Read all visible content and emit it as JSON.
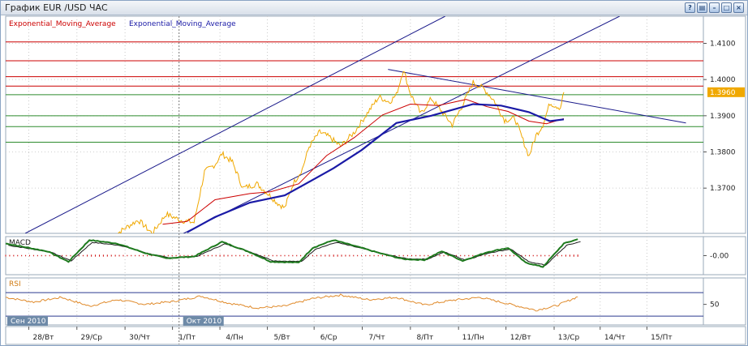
{
  "window": {
    "title": "График EUR /USD  ЧАС",
    "buttons": [
      {
        "name": "help-button",
        "glyph": "?"
      },
      {
        "name": "print-button",
        "glyph": "▤"
      },
      {
        "name": "minimize-button",
        "glyph": "–"
      },
      {
        "name": "maximize-button",
        "glyph": "□"
      },
      {
        "name": "close-button",
        "glyph": "×"
      }
    ]
  },
  "chart_data": [
    {
      "type": "line",
      "panel": "price",
      "legend": [
        {
          "name": "Exponential_Moving_Average",
          "color": "#cc0000"
        },
        {
          "name": "Exponential_Moving_Average",
          "color": "#1a1aa6"
        }
      ],
      "current_price_label": "1.3960",
      "colors": {
        "price": "#f0a800",
        "ema_fast": "#cc0000",
        "ema_slow": "#1a1aa6",
        "trend": "#1a1a8a",
        "resistance": "#cc0000",
        "support": "#2e8b2e",
        "grid": "#999999"
      },
      "ylim": [
        1.3575,
        1.4175
      ],
      "y_ticks": [
        {
          "v": 1.37,
          "label": "1.3700"
        },
        {
          "v": 1.38,
          "label": "1.3800"
        },
        {
          "v": 1.39,
          "label": "1.3900"
        },
        {
          "v": 1.4,
          "label": "1.4000"
        },
        {
          "v": 1.41,
          "label": "1.4100"
        }
      ],
      "resistance_levels": [
        1.4104,
        1.4052,
        1.4008,
        1.3982
      ],
      "support_levels": [
        1.3958,
        1.39,
        1.387,
        1.3827
      ],
      "trend_lines": [
        {
          "from": [
            0.028,
            1.3575
          ],
          "to": [
            0.63,
            1.4175
          ]
        },
        {
          "from": [
            0.255,
            1.3575
          ],
          "to": [
            0.88,
            1.4175
          ]
        },
        {
          "from": [
            0.548,
            1.4028
          ],
          "to": [
            0.975,
            1.388
          ]
        }
      ],
      "price_series": [
        [
          0.155,
          1.3568
        ],
        [
          0.17,
          1.3588
        ],
        [
          0.19,
          1.3612
        ],
        [
          0.21,
          1.3575
        ],
        [
          0.23,
          1.3628
        ],
        [
          0.25,
          1.3612
        ],
        [
          0.27,
          1.3605
        ],
        [
          0.285,
          1.3745
        ],
        [
          0.3,
          1.3765
        ],
        [
          0.31,
          1.3795
        ],
        [
          0.325,
          1.3772
        ],
        [
          0.34,
          1.37
        ],
        [
          0.36,
          1.3712
        ],
        [
          0.375,
          1.3686
        ],
        [
          0.39,
          1.3658
        ],
        [
          0.4,
          1.3645
        ],
        [
          0.412,
          1.3712
        ],
        [
          0.425,
          1.3752
        ],
        [
          0.435,
          1.3815
        ],
        [
          0.45,
          1.3855
        ],
        [
          0.465,
          1.384
        ],
        [
          0.48,
          1.3815
        ],
        [
          0.5,
          1.3855
        ],
        [
          0.52,
          1.3912
        ],
        [
          0.535,
          1.3952
        ],
        [
          0.55,
          1.3938
        ],
        [
          0.56,
          1.3958
        ],
        [
          0.57,
          1.4028
        ],
        [
          0.58,
          1.3962
        ],
        [
          0.595,
          1.3905
        ],
        [
          0.61,
          1.3948
        ],
        [
          0.625,
          1.3912
        ],
        [
          0.64,
          1.3875
        ],
        [
          0.655,
          1.393
        ],
        [
          0.67,
          1.3992
        ],
        [
          0.685,
          1.3975
        ],
        [
          0.7,
          1.3942
        ],
        [
          0.715,
          1.3888
        ],
        [
          0.73,
          1.3892
        ],
        [
          0.74,
          1.384
        ],
        [
          0.75,
          1.3788
        ],
        [
          0.76,
          1.3845
        ],
        [
          0.77,
          1.3875
        ],
        [
          0.78,
          1.3935
        ],
        [
          0.795,
          1.3922
        ],
        [
          0.8,
          1.3965
        ]
      ],
      "ema_fast_series": [
        [
          0.225,
          1.36
        ],
        [
          0.26,
          1.3608
        ],
        [
          0.3,
          1.3668
        ],
        [
          0.35,
          1.3685
        ],
        [
          0.38,
          1.369
        ],
        [
          0.42,
          1.3712
        ],
        [
          0.46,
          1.379
        ],
        [
          0.5,
          1.384
        ],
        [
          0.54,
          1.3902
        ],
        [
          0.58,
          1.3932
        ],
        [
          0.62,
          1.3928
        ],
        [
          0.66,
          1.3945
        ],
        [
          0.69,
          1.3925
        ],
        [
          0.72,
          1.3912
        ],
        [
          0.75,
          1.3885
        ],
        [
          0.775,
          1.3878
        ],
        [
          0.8,
          1.3892
        ]
      ],
      "ema_slow_series": [
        [
          0.26,
          1.3578
        ],
        [
          0.3,
          1.362
        ],
        [
          0.35,
          1.366
        ],
        [
          0.4,
          1.368
        ],
        [
          0.43,
          1.3712
        ],
        [
          0.47,
          1.3755
        ],
        [
          0.51,
          1.3805
        ],
        [
          0.56,
          1.388
        ],
        [
          0.61,
          1.39
        ],
        [
          0.67,
          1.3932
        ],
        [
          0.71,
          1.3928
        ],
        [
          0.75,
          1.391
        ],
        [
          0.78,
          1.3885
        ],
        [
          0.8,
          1.389
        ]
      ],
      "x_axis": {
        "tick_labels": [
          {
            "x": 0.054,
            "label": "28/Вт"
          },
          {
            "x": 0.123,
            "label": "29/Ср"
          },
          {
            "x": 0.192,
            "label": "30/Чт"
          },
          {
            "x": 0.26,
            "label": "1/Пт"
          },
          {
            "x": 0.328,
            "label": "4/Пн"
          },
          {
            "x": 0.396,
            "label": "5/Вт"
          },
          {
            "x": 0.463,
            "label": "6/Ср"
          },
          {
            "x": 0.532,
            "label": "7/Чт"
          },
          {
            "x": 0.601,
            "label": "8/Пт"
          },
          {
            "x": 0.67,
            "label": "11/Пн"
          },
          {
            "x": 0.738,
            "label": "12/Вт"
          },
          {
            "x": 0.807,
            "label": "13/Ср"
          },
          {
            "x": 0.873,
            "label": "14/Чт"
          },
          {
            "x": 0.94,
            "label": "15/Пт"
          }
        ],
        "month_labels": [
          {
            "x": 0.0,
            "label": "Сен 2010"
          },
          {
            "x": 0.252,
            "label": "Окт 2010"
          }
        ]
      }
    },
    {
      "type": "line",
      "panel": "macd",
      "name": "MACD",
      "y_ticks": [
        {
          "v": 0,
          "label": "-0.00"
        }
      ],
      "ylim": [
        -0.0022,
        0.0022
      ],
      "colors": {
        "main": "#1e7a1e",
        "signal": "#1a1a1a",
        "hist": "#cc0000"
      },
      "main_series": [
        [
          0.0,
          0.0014
        ],
        [
          0.06,
          0.0005
        ],
        [
          0.09,
          -0.0007
        ],
        [
          0.12,
          0.0018
        ],
        [
          0.16,
          0.0014
        ],
        [
          0.2,
          0.0003
        ],
        [
          0.23,
          -0.0003
        ],
        [
          0.27,
          -0.0001
        ],
        [
          0.31,
          0.0016
        ],
        [
          0.35,
          0.0004
        ],
        [
          0.38,
          -0.0007
        ],
        [
          0.42,
          -0.0008
        ],
        [
          0.44,
          0.0009
        ],
        [
          0.47,
          0.0018
        ],
        [
          0.51,
          0.0009
        ],
        [
          0.54,
          0.0002
        ],
        [
          0.57,
          -0.0004
        ],
        [
          0.6,
          -0.0005
        ],
        [
          0.625,
          0.0005
        ],
        [
          0.655,
          -0.0006
        ],
        [
          0.69,
          0.0004
        ],
        [
          0.72,
          0.0009
        ],
        [
          0.745,
          -0.0008
        ],
        [
          0.77,
          -0.0013
        ],
        [
          0.8,
          0.0014
        ],
        [
          0.82,
          0.0019
        ]
      ]
    },
    {
      "type": "line",
      "panel": "rsi",
      "name": "RSI",
      "y_ticks": [
        {
          "v": 50,
          "label": "50"
        }
      ],
      "ylim": [
        15,
        95
      ],
      "levels": [
        30,
        70
      ],
      "colors": {
        "line": "#e08a2a",
        "level": "#2b3a8f"
      },
      "series": [
        [
          0.0,
          62
        ],
        [
          0.04,
          54
        ],
        [
          0.08,
          62
        ],
        [
          0.12,
          47
        ],
        [
          0.16,
          58
        ],
        [
          0.2,
          50
        ],
        [
          0.24,
          55
        ],
        [
          0.28,
          64
        ],
        [
          0.32,
          52
        ],
        [
          0.36,
          44
        ],
        [
          0.4,
          47
        ],
        [
          0.44,
          60
        ],
        [
          0.48,
          66
        ],
        [
          0.52,
          58
        ],
        [
          0.56,
          62
        ],
        [
          0.6,
          49
        ],
        [
          0.64,
          57
        ],
        [
          0.68,
          62
        ],
        [
          0.72,
          51
        ],
        [
          0.76,
          40
        ],
        [
          0.79,
          48
        ],
        [
          0.82,
          63
        ]
      ]
    }
  ]
}
